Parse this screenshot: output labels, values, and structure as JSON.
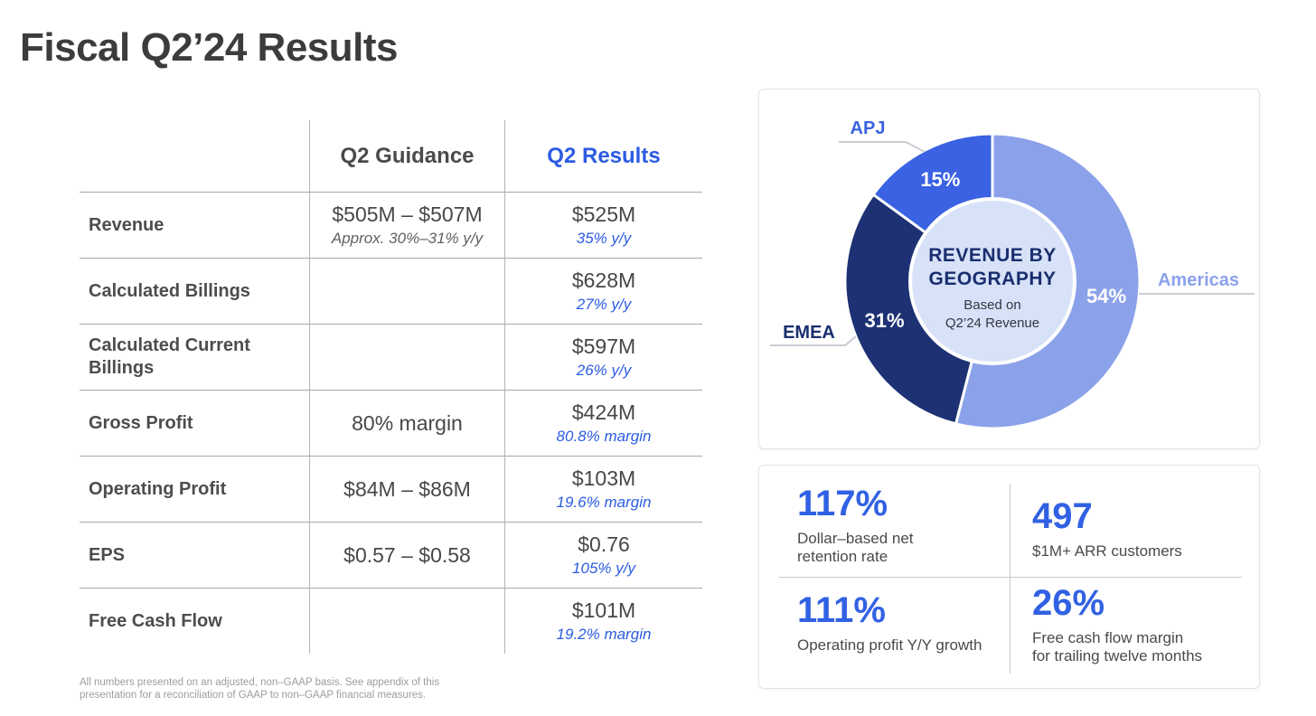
{
  "title": "Fiscal Q2’24 Results",
  "table": {
    "col_headers": {
      "guidance": "Q2 Guidance",
      "results": "Q2 Results"
    },
    "rows": [
      {
        "label": "Revenue",
        "guidance": "$505M – $507M",
        "guidance_sub": "Approx. 30%–31% y/y",
        "result": "$525M",
        "result_sub": "35% y/y"
      },
      {
        "label": "Calculated Billings",
        "guidance": "",
        "guidance_sub": "",
        "result": "$628M",
        "result_sub": "27% y/y"
      },
      {
        "label": "Calculated Current Billings",
        "guidance": "",
        "guidance_sub": "",
        "result": "$597M",
        "result_sub": "26% y/y"
      },
      {
        "label": "Gross Profit",
        "guidance": "80% margin",
        "guidance_sub": "",
        "result": "$424M",
        "result_sub": "80.8% margin"
      },
      {
        "label": "Operating Profit",
        "guidance": "$84M – $86M",
        "guidance_sub": "",
        "result": "$103M",
        "result_sub": "19.6% margin"
      },
      {
        "label": "EPS",
        "guidance": "$0.57 – $0.58",
        "guidance_sub": "",
        "result": "$0.76",
        "result_sub": "105% y/y"
      },
      {
        "label": "Free Cash Flow",
        "guidance": "",
        "guidance_sub": "",
        "result": "$101M",
        "result_sub": "19.2% margin"
      }
    ]
  },
  "footnote": "All numbers presented on an adjusted, non–GAAP basis. See appendix of this\npresentation for a reconciliation of GAAP to non–GAAP financial measures.",
  "chart_data": {
    "type": "pie",
    "donut": true,
    "start_angle_deg": 0,
    "direction": "clockwise",
    "center_title_lines": [
      "REVENUE BY",
      "GEOGRAPHY"
    ],
    "center_subtitle_lines": [
      "Based on",
      "Q2’24 Revenue"
    ],
    "center_fill": "#d7e1f8",
    "slices": [
      {
        "label": "Americas",
        "value": 54,
        "color": "#8ba2ea",
        "label_color": "#8ba2ea"
      },
      {
        "label": "EMEA",
        "value": 31,
        "color": "#1d3174",
        "label_color": "#1a2e6e"
      },
      {
        "label": "APJ",
        "value": 15,
        "color": "#3a62e2",
        "label_color": "#3a62e2"
      }
    ]
  },
  "metrics": [
    {
      "value": "117%",
      "label": "Dollar–based net\nretention rate"
    },
    {
      "value": "497",
      "label": "$1M+ ARR customers"
    },
    {
      "value": "111%",
      "label": "Operating profit Y/Y growth"
    },
    {
      "value": "26%",
      "label": "Free cash flow margin\nfor trailing twelve months"
    }
  ],
  "colors": {
    "accent_blue": "#2b5ce2",
    "metric_blue": "#3161e3",
    "navy": "#1a2e6e"
  }
}
